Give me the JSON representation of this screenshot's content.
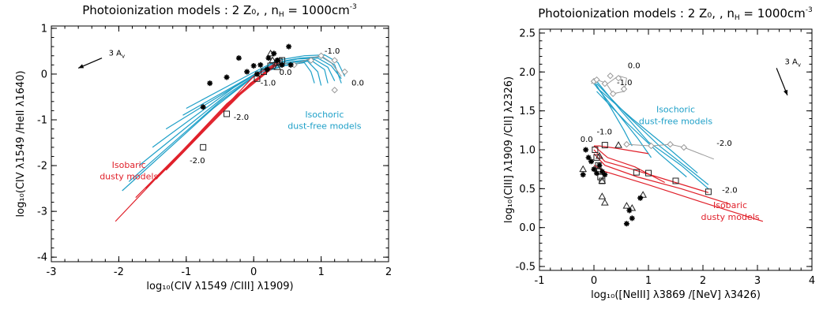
{
  "chart_data": [
    {
      "type": "line",
      "title": "Photoionization models : 2 Z₀, , n",
      "title_sub": "H",
      "title_tail": " = 1000cm",
      "title_sup": "-3",
      "xlabel": "log₁₀(CIV λ1549 /CIII] λ1909)",
      "ylabel": "log₁₀(CIV λ1549 /HeII λ1640)",
      "xlim": [
        -3,
        2
      ],
      "ylim": [
        -4.1,
        1.05
      ],
      "xticks": [
        "-3",
        "-2",
        "-1",
        "0",
        "1",
        "2"
      ],
      "yticks": [
        "-4",
        "-3",
        "-2",
        "-1",
        "0",
        "1"
      ],
      "xtick_values": [
        -3,
        -2,
        -1,
        0,
        1,
        2
      ],
      "ytick_values": [
        -4,
        -3,
        -2,
        -1,
        0,
        1
      ],
      "reddening_label": "3 A",
      "reddening_sub": "v",
      "model_labels": [
        {
          "text": "Isochoric",
          "color": "#1fa0c8",
          "x": 1.05,
          "y": -0.95
        },
        {
          "text": "dust-free models",
          "color": "#1fa0c8",
          "x": 1.05,
          "y": -1.2
        },
        {
          "text": "Isobaric",
          "color": "#e0202a",
          "x": -1.85,
          "y": -2.05
        },
        {
          "text": "dusty models",
          "color": "#e0202a",
          "x": -1.85,
          "y": -2.3
        }
      ],
      "annotations": [
        {
          "text": "-1.0",
          "x": 1.05,
          "y": 0.45
        },
        {
          "text": "0.0",
          "x": 1.45,
          "y": -0.25
        },
        {
          "text": "0.0",
          "x": 0.38,
          "y": -0.02
        },
        {
          "text": "-1.0",
          "x": 0.1,
          "y": -0.25
        },
        {
          "text": "-2.0",
          "x": -0.3,
          "y": -1.0
        },
        {
          "text": "-2.0",
          "x": -0.95,
          "y": -1.95
        }
      ],
      "series": [
        {
          "role": "blue",
          "x": [
            -1.05,
            -0.1,
            0.3,
            0.7,
            1.0,
            1.2,
            1.3
          ],
          "y": [
            -0.9,
            -0.1,
            0.25,
            0.35,
            0.38,
            0.2,
            -0.2
          ]
        },
        {
          "role": "blue",
          "x": [
            -1.0,
            -0.05,
            0.35,
            0.75,
            1.05,
            1.25,
            1.35
          ],
          "y": [
            -0.75,
            0.0,
            0.3,
            0.4,
            0.42,
            0.25,
            -0.05
          ]
        },
        {
          "role": "blue",
          "x": [
            -1.3,
            -0.2,
            0.25,
            0.65,
            0.95,
            1.15,
            1.3
          ],
          "y": [
            -1.2,
            -0.2,
            0.2,
            0.33,
            0.35,
            0.18,
            -0.1
          ]
        },
        {
          "role": "blue",
          "x": [
            -1.5,
            -0.3,
            0.2,
            0.6,
            0.9,
            1.1,
            1.2
          ],
          "y": [
            -1.6,
            -0.3,
            0.15,
            0.28,
            0.32,
            0.15,
            -0.15
          ]
        },
        {
          "role": "blue",
          "x": [
            -1.7,
            -0.4,
            0.15,
            0.55,
            0.85,
            1.05,
            1.1
          ],
          "y": [
            -2.0,
            -0.45,
            0.1,
            0.25,
            0.3,
            0.1,
            -0.2
          ]
        },
        {
          "role": "blue",
          "x": [
            -1.85,
            -0.5,
            0.1,
            0.5,
            0.8,
            0.95,
            1.0
          ],
          "y": [
            -2.35,
            -0.6,
            0.05,
            0.2,
            0.28,
            0.05,
            -0.25
          ]
        },
        {
          "role": "blue",
          "x": [
            -1.95,
            -0.6,
            0.05,
            0.45,
            0.75,
            0.85,
            0.9
          ],
          "y": [
            -2.55,
            -0.75,
            0.0,
            0.18,
            0.25,
            0.05,
            -0.2
          ]
        },
        {
          "role": "red",
          "x": [
            -2.05,
            -0.4,
            0.25
          ],
          "y": [
            -3.22,
            -0.65,
            0.15
          ]
        },
        {
          "role": "red",
          "x": [
            -1.75,
            -0.3,
            0.3
          ],
          "y": [
            -2.7,
            -0.55,
            0.2
          ]
        },
        {
          "role": "red",
          "x": [
            -1.6,
            -0.2,
            0.35
          ],
          "y": [
            -2.5,
            -0.45,
            0.22
          ]
        },
        {
          "role": "red",
          "x": [
            -1.45,
            -0.15,
            0.38
          ],
          "y": [
            -2.3,
            -0.35,
            0.25
          ]
        },
        {
          "role": "red",
          "x": [
            -1.3,
            -0.05,
            0.4
          ],
          "y": [
            -2.1,
            -0.2,
            0.28
          ]
        },
        {
          "role": "red",
          "x": [
            -1.15,
            0.0,
            0.4
          ],
          "y": [
            -1.85,
            -0.05,
            0.3
          ]
        }
      ],
      "grey_track": {
        "x": [
          0.35,
          0.6,
          0.85,
          1.0,
          1.15,
          1.3
        ],
        "y": [
          0.25,
          0.2,
          0.35,
          0.4,
          0.25,
          -0.05
        ]
      },
      "grey_diamonds": {
        "x": [
          0.6,
          0.85,
          1.0,
          1.2,
          1.35,
          1.2
        ],
        "y": [
          0.2,
          0.3,
          0.4,
          0.3,
          0.05,
          -0.35
        ]
      },
      "squares": {
        "x": [
          -0.75,
          -0.4,
          0.05,
          0.15,
          0.25,
          0.35,
          0.38,
          0.42
        ],
        "y": [
          -1.6,
          -0.87,
          -0.1,
          0.05,
          0.18,
          0.25,
          0.28,
          0.3
        ]
      },
      "triangles": {
        "x": [
          0.25,
          0.28,
          0.35
        ],
        "y": [
          0.45,
          0.3,
          0.15
        ]
      },
      "stars": {
        "x": [
          -0.75,
          -0.65,
          -0.4,
          -0.22,
          -0.1,
          0.0,
          0.05,
          0.1,
          0.2,
          0.22,
          0.3,
          0.35,
          0.42,
          0.52,
          0.55
        ],
        "y": [
          -0.72,
          -0.2,
          -0.07,
          0.35,
          0.05,
          0.18,
          0.0,
          0.2,
          0.1,
          0.35,
          0.45,
          0.3,
          0.2,
          0.6,
          0.2
        ]
      }
    },
    {
      "type": "line",
      "title": "Photoionization models : 2 Z₀, , n",
      "title_sub": "H",
      "title_tail": " = 1000cm",
      "title_sup": "-3",
      "xlabel": "log₁₀([NeIII] λ3869 /[NeV] λ3426)",
      "ylabel": "log₁₀(CIII] λ1909 /CII] λ2326)",
      "xlim": [
        -1,
        4
      ],
      "ylim": [
        -0.55,
        2.55
      ],
      "xticks": [
        "-1",
        "0",
        "1",
        "2",
        "3",
        "4"
      ],
      "yticks": [
        "-0.5",
        "0.0",
        "0.5",
        "1.0",
        "1.5",
        "2.0",
        "2.5"
      ],
      "xtick_values": [
        -1,
        0,
        1,
        2,
        3,
        4
      ],
      "ytick_values": [
        -0.5,
        0.0,
        0.5,
        1.0,
        1.5,
        2.0,
        2.5
      ],
      "reddening_label": "3 A",
      "reddening_sub": "v",
      "model_labels": [
        {
          "text": "Isochoric",
          "color": "#1fa0c8",
          "x": 1.5,
          "y": 1.48
        },
        {
          "text": "dust-free models",
          "color": "#1fa0c8",
          "x": 1.5,
          "y": 1.33
        },
        {
          "text": "Isobaric",
          "color": "#e0202a",
          "x": 2.5,
          "y": 0.25
        },
        {
          "text": "dusty models",
          "color": "#e0202a",
          "x": 2.5,
          "y": 0.1
        }
      ],
      "annotations": [
        {
          "text": "0.0",
          "x": 0.62,
          "y": 2.05
        },
        {
          "text": "-1.0",
          "x": 0.42,
          "y": 1.83
        },
        {
          "text": "0.0",
          "x": -0.25,
          "y": 1.1
        },
        {
          "text": "-1.0",
          "x": 0.05,
          "y": 1.2
        },
        {
          "text": "-2.0",
          "x": 2.25,
          "y": 1.05
        },
        {
          "text": "-2.0",
          "x": 2.35,
          "y": 0.45
        }
      ],
      "series": [
        {
          "role": "blue",
          "x": [
            0.05,
            0.5,
            1.0,
            1.6,
            2.1
          ],
          "y": [
            1.88,
            1.5,
            1.1,
            0.8,
            0.5
          ]
        },
        {
          "role": "blue",
          "x": [
            0.05,
            0.6,
            1.2,
            1.8,
            2.1
          ],
          "y": [
            1.85,
            1.45,
            1.05,
            0.72,
            0.55
          ]
        },
        {
          "role": "blue",
          "x": [
            0.05,
            0.7,
            1.4,
            1.9
          ],
          "y": [
            1.8,
            1.4,
            1.0,
            0.7
          ]
        },
        {
          "role": "blue",
          "x": [
            0.05,
            0.6,
            1.2,
            1.7
          ],
          "y": [
            1.75,
            1.35,
            0.95,
            0.65
          ]
        },
        {
          "role": "blue",
          "x": [
            0.0,
            0.4,
            0.8,
            1.05
          ],
          "y": [
            1.85,
            1.5,
            1.15,
            0.9
          ]
        },
        {
          "role": "blue",
          "x": [
            0.0,
            0.3,
            0.55,
            0.7
          ],
          "y": [
            1.88,
            1.55,
            1.25,
            1.05
          ]
        },
        {
          "role": "red",
          "x": [
            0.0,
            0.2,
            1.0,
            2.1,
            3.1
          ],
          "y": [
            0.8,
            0.72,
            0.55,
            0.3,
            0.08
          ]
        },
        {
          "role": "red",
          "x": [
            0.0,
            0.2,
            0.8,
            1.6,
            2.5
          ],
          "y": [
            0.95,
            0.8,
            0.65,
            0.5,
            0.3
          ]
        },
        {
          "role": "red",
          "x": [
            0.0,
            0.2,
            0.7,
            1.4,
            2.1
          ],
          "y": [
            1.0,
            0.85,
            0.75,
            0.6,
            0.45
          ]
        },
        {
          "role": "red",
          "x": [
            0.0,
            0.25,
            0.75,
            1.3
          ],
          "y": [
            1.05,
            0.9,
            0.78,
            0.58
          ]
        },
        {
          "role": "red",
          "x": [
            0.0,
            0.1,
            0.4,
            1.0
          ],
          "y": [
            1.05,
            1.05,
            1.02,
            0.95
          ]
        }
      ],
      "grey_track": {
        "x": [
          -0.05,
          0.05,
          0.25,
          0.45,
          0.6,
          0.55,
          0.35,
          0.2
        ],
        "y": [
          1.85,
          1.9,
          1.85,
          1.95,
          1.92,
          1.75,
          1.72,
          1.88
        ]
      },
      "grey_diamonds": {
        "x": [
          0.0,
          0.05,
          0.2,
          0.3,
          0.45,
          0.55,
          0.35,
          0.6,
          1.05,
          1.4,
          1.65
        ],
        "y": [
          1.88,
          1.9,
          1.85,
          1.95,
          1.92,
          1.78,
          1.72,
          1.07,
          1.05,
          1.07,
          1.03
        ]
      },
      "grey_track2": {
        "x": [
          0.6,
          1.05,
          1.4,
          1.65,
          2.2
        ],
        "y": [
          1.07,
          1.05,
          1.07,
          1.03,
          0.88
        ]
      },
      "squares": {
        "x": [
          0.02,
          0.05,
          0.08,
          0.1,
          0.12,
          0.15,
          0.2,
          0.78,
          1.0,
          1.5,
          2.1
        ],
        "y": [
          1.0,
          0.9,
          0.8,
          0.72,
          0.65,
          0.6,
          1.06,
          0.71,
          0.7,
          0.6,
          0.46
        ]
      },
      "triangles": {
        "x": [
          -0.2,
          0.15,
          0.45,
          0.2,
          0.6,
          0.9,
          0.1,
          0.15,
          0.7
        ],
        "y": [
          0.75,
          0.4,
          1.06,
          0.32,
          0.28,
          0.42,
          0.92,
          0.6,
          0.25
        ]
      },
      "stars": {
        "x": [
          -0.15,
          -0.1,
          -0.05,
          0.0,
          0.05,
          0.1,
          0.15,
          0.2,
          0.6,
          0.65,
          0.7,
          0.85,
          -0.2
        ],
        "y": [
          1.0,
          0.9,
          0.85,
          0.75,
          0.7,
          0.8,
          0.72,
          0.68,
          0.05,
          0.22,
          0.12,
          0.38,
          0.68
        ]
      }
    }
  ]
}
